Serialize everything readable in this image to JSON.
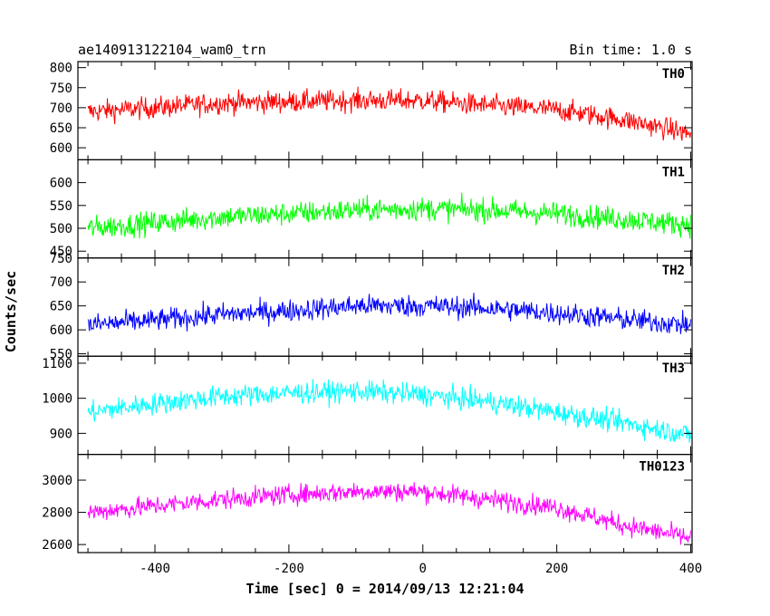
{
  "chart_data": {
    "type": "line",
    "title": "ae140913122104_wam0_trn",
    "subtitle": "Bin time: 1.0 s",
    "xlabel": "Time [sec] 0 = 2014/09/13 12:21:04",
    "ylabel": "Counts/sec",
    "xlim": [
      -515,
      402
    ],
    "xticks": [
      -400,
      -200,
      0,
      200,
      400
    ],
    "bin_time_s": 1.0,
    "panels": [
      {
        "name": "TH0",
        "color": "#ff0000",
        "ylim": [
          570,
          815
        ],
        "yticks": [
          600,
          650,
          700,
          750,
          800
        ],
        "trend": [
          [
            -500,
            690
          ],
          [
            -400,
            700
          ],
          [
            -300,
            712
          ],
          [
            -200,
            715
          ],
          [
            -100,
            718
          ],
          [
            0,
            718
          ],
          [
            100,
            705
          ],
          [
            200,
            695
          ],
          [
            300,
            670
          ],
          [
            400,
            635
          ]
        ],
        "noise": 35
      },
      {
        "name": "TH1",
        "color": "#00ff00",
        "ylim": [
          435,
          650
        ],
        "yticks": [
          450,
          500,
          550,
          600
        ],
        "trend": [
          [
            -500,
            500
          ],
          [
            -400,
            512
          ],
          [
            -300,
            525
          ],
          [
            -200,
            532
          ],
          [
            -100,
            540
          ],
          [
            0,
            543
          ],
          [
            100,
            540
          ],
          [
            200,
            532
          ],
          [
            300,
            520
          ],
          [
            400,
            508
          ]
        ],
        "noise": 33
      },
      {
        "name": "TH2",
        "color": "#0000ff",
        "ylim": [
          545,
          750
        ],
        "yticks": [
          550,
          600,
          650,
          700,
          750
        ],
        "trend": [
          [
            -500,
            610
          ],
          [
            -400,
            620
          ],
          [
            -300,
            632
          ],
          [
            -200,
            640
          ],
          [
            -100,
            650
          ],
          [
            0,
            650
          ],
          [
            100,
            645
          ],
          [
            200,
            635
          ],
          [
            300,
            622
          ],
          [
            400,
            610
          ]
        ],
        "noise": 30
      },
      {
        "name": "TH3",
        "color": "#00ffff",
        "ylim": [
          840,
          1120
        ],
        "yticks": [
          900,
          1000,
          1100
        ],
        "trend": [
          [
            -500,
            960
          ],
          [
            -400,
            985
          ],
          [
            -300,
            1005
          ],
          [
            -200,
            1015
          ],
          [
            -100,
            1020
          ],
          [
            0,
            1010
          ],
          [
            100,
            990
          ],
          [
            200,
            960
          ],
          [
            300,
            930
          ],
          [
            400,
            895
          ]
        ],
        "noise": 40
      },
      {
        "name": "TH0123",
        "color": "#ff00ff",
        "ylim": [
          2550,
          3160
        ],
        "yticks": [
          2600,
          2800,
          3000
        ],
        "trend": [
          [
            -500,
            2800
          ],
          [
            -400,
            2840
          ],
          [
            -300,
            2880
          ],
          [
            -200,
            2910
          ],
          [
            -100,
            2930
          ],
          [
            0,
            2930
          ],
          [
            100,
            2880
          ],
          [
            200,
            2830
          ],
          [
            300,
            2720
          ],
          [
            400,
            2640
          ]
        ],
        "noise": 80
      }
    ]
  }
}
